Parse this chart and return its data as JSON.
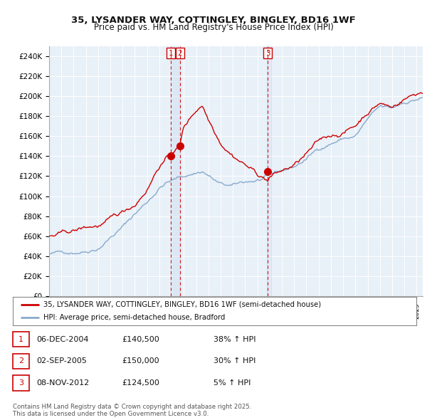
{
  "title_line1": "35, LYSANDER WAY, COTTINGLEY, BINGLEY, BD16 1WF",
  "title_line2": "Price paid vs. HM Land Registry's House Price Index (HPI)",
  "ylim": [
    0,
    250000
  ],
  "yticks": [
    0,
    20000,
    40000,
    60000,
    80000,
    100000,
    120000,
    140000,
    160000,
    180000,
    200000,
    220000,
    240000
  ],
  "ytick_labels": [
    "£0",
    "£20K",
    "£40K",
    "£60K",
    "£80K",
    "£100K",
    "£120K",
    "£140K",
    "£160K",
    "£180K",
    "£200K",
    "£220K",
    "£240K"
  ],
  "legend_line1": "35, LYSANDER WAY, COTTINGLEY, BINGLEY, BD16 1WF (semi-detached house)",
  "legend_line2": "HPI: Average price, semi-detached house, Bradford",
  "transaction_color": "#cc0000",
  "hpi_color": "#88aacc",
  "vline_color": "#cc0000",
  "shade_color": "#ddeeff",
  "sale_dates": [
    2004.92,
    2005.67,
    2012.85
  ],
  "sale_prices": [
    140500,
    150000,
    124500
  ],
  "sale_labels": [
    "1",
    "2",
    "3"
  ],
  "sale_table": [
    {
      "num": "1",
      "date": "06-DEC-2004",
      "price": "£140,500",
      "hpi": "38% ↑ HPI"
    },
    {
      "num": "2",
      "date": "02-SEP-2005",
      "price": "£150,000",
      "hpi": "30% ↑ HPI"
    },
    {
      "num": "3",
      "date": "08-NOV-2012",
      "price": "£124,500",
      "hpi": "5% ↑ HPI"
    }
  ],
  "footer": "Contains HM Land Registry data © Crown copyright and database right 2025.\nThis data is licensed under the Open Government Licence v3.0.",
  "background_color": "#ffffff",
  "plot_bg_color": "#e8f0f8",
  "grid_color": "#ffffff"
}
